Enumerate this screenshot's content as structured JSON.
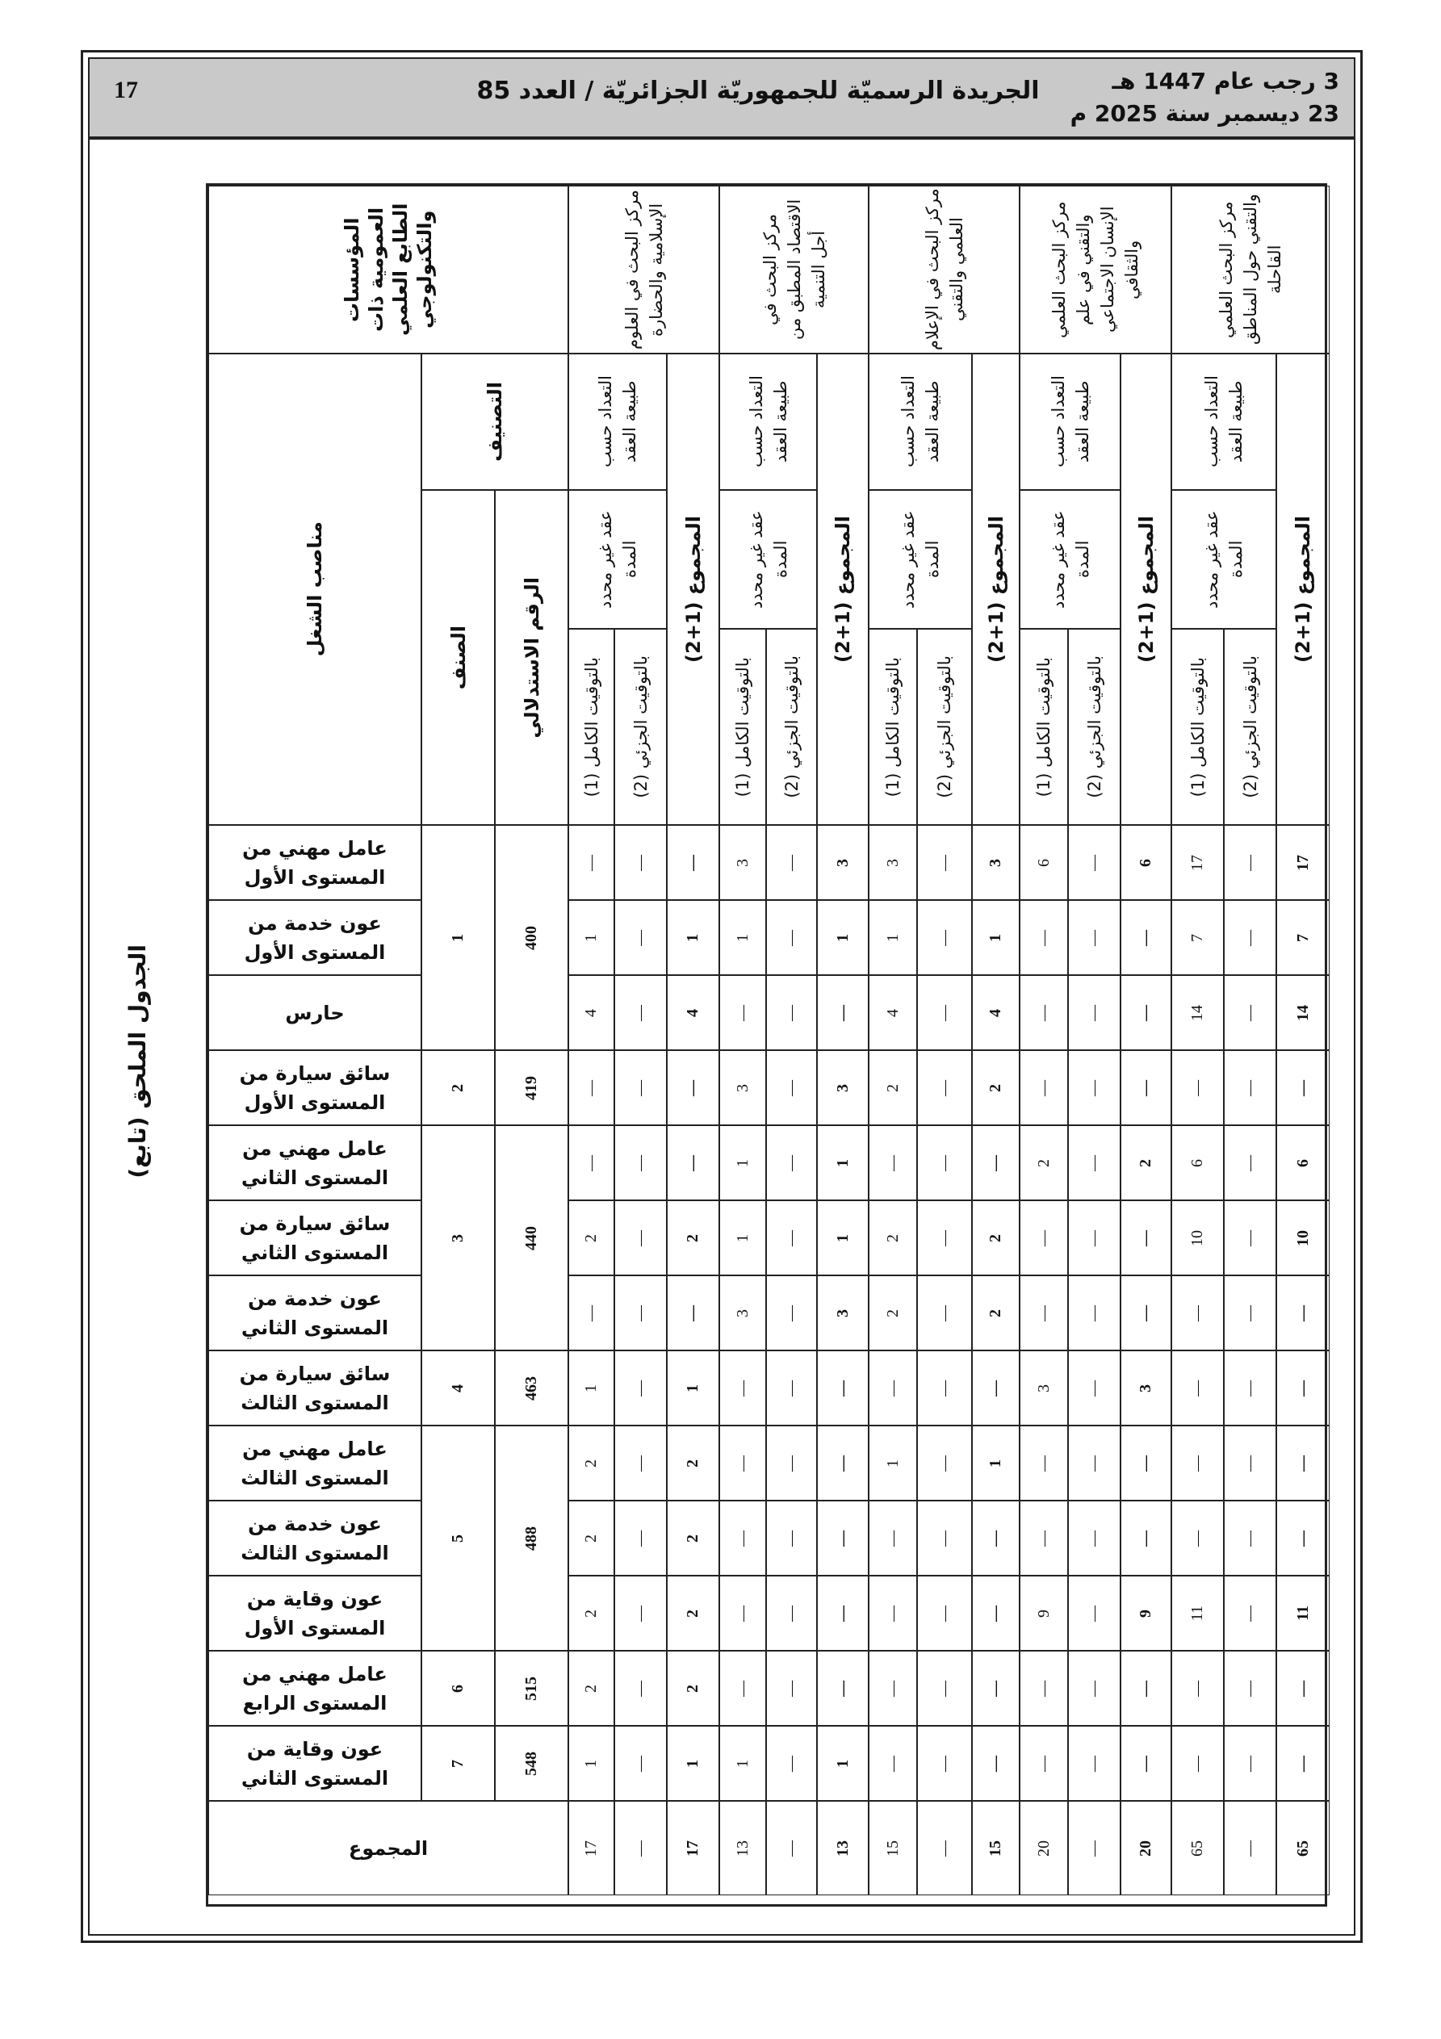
{
  "header": {
    "page_number": "17",
    "title": "الجريدة الرسميّة للجمهوريّة الجزائريّة / العدد 85",
    "hijri_date": "3 رجب عام 1447 هـ",
    "gregorian_date": "23 ديسمبر سنة 2025 م"
  },
  "caption": "الجدول الملحق (تابع)",
  "table": {
    "institutions_header": "المؤسسات العمومية ذات الطابع العلمي والتكنولوجي",
    "jobs_header": "مناصب الشغل",
    "classification_header": "التصنيف",
    "category_header": "الصنف",
    "index_header": "الرقم الاستدلالي",
    "contract_header": "التعداد حسب طبيعة العقد",
    "permanent_header": "عقد غير محدد المدة",
    "full_time_label": "بالتوقيت الكامل (1)",
    "part_time_label": "بالتوقيت الجزئي (2)",
    "total_label": "المجموع (1+2)",
    "total_row_label": "المجموع",
    "groups": [
      {
        "category": "1",
        "index": "400",
        "jobs": [
          "عامل مهني من المستوى الأول",
          "عون خدمة من المستوى الأول",
          "حارس"
        ]
      },
      {
        "category": "2",
        "index": "419",
        "jobs": [
          "سائق سيارة من المستوى الأول"
        ]
      },
      {
        "category": "3",
        "index": "440",
        "jobs": [
          "عامل مهني من المستوى الثاني",
          "سائق سيارة من المستوى الثاني",
          "عون خدمة من المستوى الثاني"
        ]
      },
      {
        "category": "4",
        "index": "463",
        "jobs": [
          "سائق سيارة من المستوى الثالث"
        ]
      },
      {
        "category": "5",
        "index": "488",
        "jobs": [
          "عامل مهني من المستوى الثالث",
          "عون خدمة من المستوى الثالث",
          "عون وقاية من المستوى الأول"
        ]
      },
      {
        "category": "6",
        "index": "515",
        "jobs": [
          "عامل مهني من المستوى الرابع"
        ]
      },
      {
        "category": "7",
        "index": "548",
        "jobs": [
          "عون وقاية من المستوى الثاني"
        ]
      }
    ],
    "institutions": [
      {
        "name": "مركز البحث في العلوم الإسلامية والحضارة",
        "full": [
          "—",
          "1",
          "4",
          "—",
          "—",
          "2",
          "—",
          "1",
          "2",
          "2",
          "2",
          "2",
          "1"
        ],
        "part": [
          "—",
          "—",
          "—",
          "—",
          "—",
          "—",
          "—",
          "—",
          "—",
          "—",
          "—",
          "—",
          "—"
        ],
        "total": [
          "—",
          "1",
          "4",
          "—",
          "—",
          "2",
          "—",
          "1",
          "2",
          "2",
          "2",
          "2",
          "1"
        ],
        "sums": {
          "full": "17",
          "part": "—",
          "total": "17"
        }
      },
      {
        "name": "مركز البحث في الاقتصاد المطبق من أجل التنمية",
        "full": [
          "3",
          "1",
          "—",
          "3",
          "1",
          "1",
          "3",
          "—",
          "—",
          "—",
          "—",
          "—",
          "1"
        ],
        "part": [
          "—",
          "—",
          "—",
          "—",
          "—",
          "—",
          "—",
          "—",
          "—",
          "—",
          "—",
          "—",
          "—"
        ],
        "total": [
          "3",
          "1",
          "—",
          "3",
          "1",
          "1",
          "3",
          "—",
          "—",
          "—",
          "—",
          "—",
          "1"
        ],
        "sums": {
          "full": "13",
          "part": "—",
          "total": "13"
        }
      },
      {
        "name": "مركز البحث في الإعلام العلمي والتقني",
        "full": [
          "3",
          "1",
          "4",
          "2",
          "—",
          "2",
          "2",
          "—",
          "1",
          "—",
          "—",
          "—",
          "—"
        ],
        "part": [
          "—",
          "—",
          "—",
          "—",
          "—",
          "—",
          "—",
          "—",
          "—",
          "—",
          "—",
          "—",
          "—"
        ],
        "total": [
          "3",
          "1",
          "4",
          "2",
          "—",
          "2",
          "2",
          "—",
          "1",
          "—",
          "—",
          "—",
          "—"
        ],
        "sums": {
          "full": "15",
          "part": "—",
          "total": "15"
        }
      },
      {
        "name": "مركز البحث العلمي والتقني في علم الإنسان الاجتماعي والثقافي",
        "full": [
          "6",
          "—",
          "—",
          "—",
          "2",
          "—",
          "—",
          "3",
          "—",
          "—",
          "9",
          "—",
          "—"
        ],
        "part": [
          "—",
          "—",
          "—",
          "—",
          "—",
          "—",
          "—",
          "—",
          "—",
          "—",
          "—",
          "—",
          "—"
        ],
        "total": [
          "6",
          "—",
          "—",
          "—",
          "2",
          "—",
          "—",
          "3",
          "—",
          "—",
          "9",
          "—",
          "—"
        ],
        "sums": {
          "full": "20",
          "part": "—",
          "total": "20"
        }
      },
      {
        "name": "مركز البحث العلمي والتقني حول المناطق القاحلة",
        "full": [
          "17",
          "7",
          "14",
          "—",
          "6",
          "10",
          "—",
          "—",
          "—",
          "—",
          "11",
          "—",
          "—"
        ],
        "part": [
          "—",
          "—",
          "—",
          "—",
          "—",
          "—",
          "—",
          "—",
          "—",
          "—",
          "—",
          "—",
          "—"
        ],
        "total": [
          "17",
          "7",
          "14",
          "—",
          "6",
          "10",
          "—",
          "—",
          "—",
          "—",
          "11",
          "—",
          "—"
        ],
        "sums": {
          "full": "65",
          "part": "—",
          "total": "65"
        }
      }
    ]
  }
}
